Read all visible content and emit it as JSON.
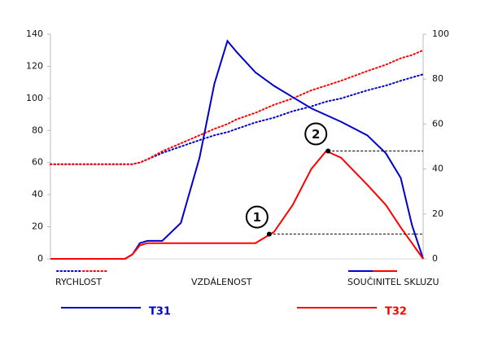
{
  "chart_data": {
    "type": "line",
    "xlabel": "VZDÁLENOST",
    "speed_label": "RYCHLOST",
    "friction_label": "SOUČINITEL SKLUZU",
    "x": [
      0,
      10,
      20,
      22,
      24,
      26,
      30,
      35,
      40,
      44,
      47.5,
      50,
      55,
      60,
      65,
      70,
      74,
      78,
      85,
      90,
      94,
      97,
      100
    ],
    "xlim": [
      0,
      100
    ],
    "ylim": [
      0,
      140
    ],
    "yticks": [
      0,
      20,
      40,
      60,
      80,
      100,
      120,
      140
    ],
    "y2lim": [
      0,
      100
    ],
    "y2ticks": [
      0,
      20,
      40,
      60,
      80,
      100
    ],
    "series": [
      {
        "name": "T31",
        "color": "#0000cc",
        "speed": [
          59,
          59,
          59,
          59,
          60,
          62,
          66,
          70,
          74,
          77,
          79,
          81,
          85,
          88,
          92,
          95,
          98,
          100,
          105,
          108,
          111,
          113,
          115
        ],
        "friction": [
          0,
          0,
          0,
          2,
          7,
          8,
          8,
          16,
          45,
          78,
          97,
          92,
          83,
          77,
          72,
          67,
          64,
          61,
          55,
          47,
          36,
          15,
          0
        ]
      },
      {
        "name": "T32",
        "color": "#ff0000",
        "speed": [
          59,
          59,
          59,
          59,
          60,
          62,
          67,
          72,
          77,
          81,
          84,
          87,
          91,
          96,
          100,
          105,
          108,
          111,
          117,
          121,
          125,
          127,
          130
        ],
        "friction": [
          0,
          0,
          0,
          2,
          6,
          7,
          7,
          7,
          7,
          7,
          7,
          7,
          7,
          12,
          24,
          40,
          48,
          45,
          33,
          24,
          14,
          7,
          0
        ]
      }
    ],
    "annotations": [
      {
        "text": "1",
        "x": 58.7,
        "y": 11
      },
      {
        "text": "2",
        "x": 74.5,
        "y": 48
      }
    ]
  }
}
